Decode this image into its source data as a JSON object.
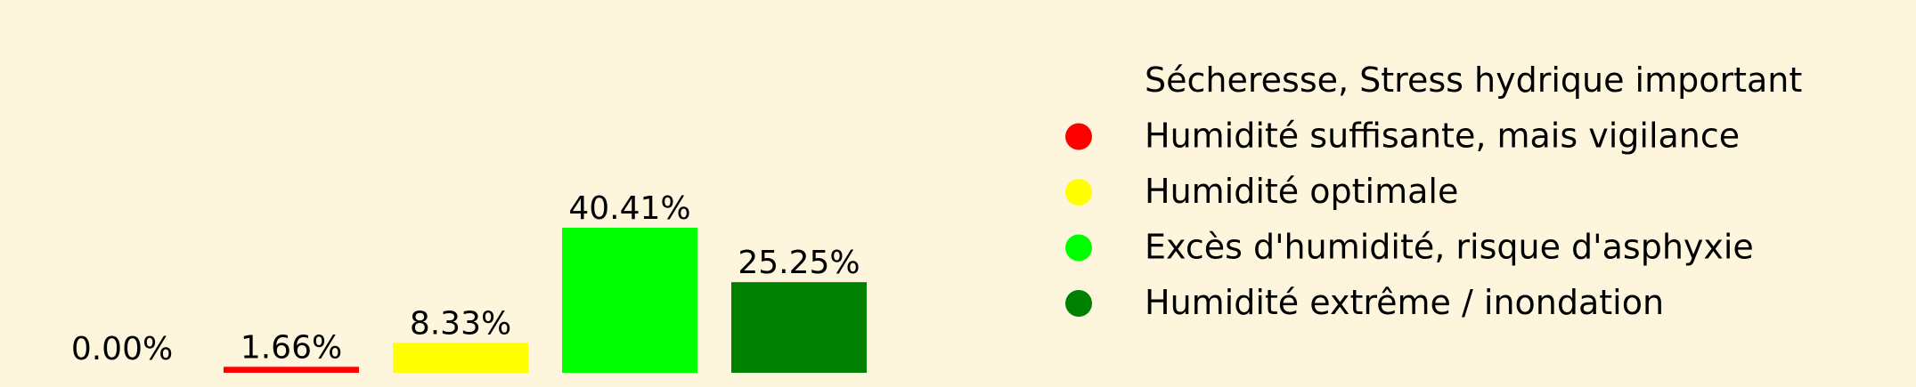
{
  "chart_data": {
    "type": "bar",
    "categories": [
      "Sécheresse, Stress hydrique important",
      "Humidité suffisante, mais vigilance",
      "Humidité optimale",
      "Excès d'humidité, risque d'asphyxie",
      "Humidité extrême / inondation"
    ],
    "values": [
      0.0,
      1.66,
      8.33,
      40.41,
      25.25
    ],
    "data_labels": [
      "0.00%",
      "1.66%",
      "8.33%",
      "40.41%",
      "25.25%"
    ],
    "colors": [
      "#c81e1e",
      "#ff0000",
      "#ffff00",
      "#00ff00",
      "#008000"
    ],
    "legend": {
      "placement": "right",
      "entries": [
        "Sécheresse, Stress hydrique important",
        "Humidité suffisante, mais vigilance",
        "Humidité optimale",
        "Excès d'humidité, risque d'asphyxie",
        "Humidité extrême / inondation"
      ]
    },
    "grid": false,
    "axes_visible": false
  },
  "style": {
    "background": "#fdf6dc"
  }
}
